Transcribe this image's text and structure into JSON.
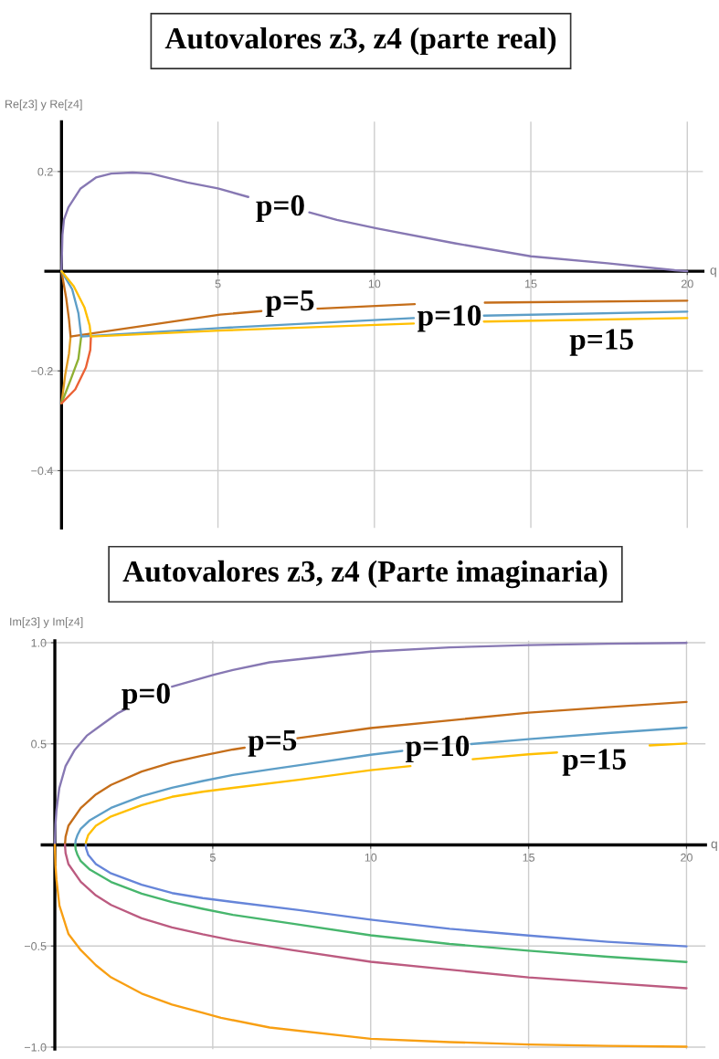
{
  "chart_data": [
    {
      "type": "line",
      "title": "Autovalores z3, z4 (parte real)",
      "xlabel": "q",
      "ylabel": "Re[z3] y Re[z4]",
      "xlim": [
        -0.5,
        20.5
      ],
      "ylim": [
        -0.515,
        0.3
      ],
      "xticks": [
        5,
        10,
        15,
        20
      ],
      "yticks": [
        {
          "value": -0.4,
          "label": "−0.4"
        },
        {
          "value": -0.2,
          "label": "−0.2"
        },
        0.2
      ],
      "grid": true,
      "series": [
        {
          "color": "#e19c24",
          "x": [
            0,
            0.12,
            0.24,
            0.29
          ],
          "values": [
            -0.265,
            -0.207,
            -0.165,
            -0.131
          ]
        },
        {
          "color": "#8fb032",
          "x": [
            0,
            0.29,
            0.54,
            0.63
          ],
          "values": [
            -0.265,
            -0.218,
            -0.176,
            -0.131
          ]
        },
        {
          "color": "#eb6235",
          "x": [
            0,
            0.44,
            0.78,
            0.92,
            0.94
          ],
          "values": [
            -0.265,
            -0.237,
            -0.193,
            -0.158,
            -0.131
          ]
        },
        {
          "color": "#8778b3",
          "x": [
            0,
            0.03,
            0.08,
            0.22,
            0.61,
            1.1,
            1.59,
            2.27,
            2.85,
            4.02,
            5.0,
            5.97,
            6.95,
            7.92,
            8.8,
            10.07,
            12.57,
            15,
            17.45,
            19.6,
            20
          ],
          "values": [
            0,
            0.073,
            0.104,
            0.128,
            0.166,
            0.188,
            0.196,
            0.198,
            0.196,
            0.178,
            0.166,
            0.149,
            null,
            0.118,
            0.103,
            0.086,
            0.056,
            0.03,
            0.016,
            0.002,
            0
          ]
        },
        {
          "color": "#c56e1a",
          "x": [
            0,
            0.05,
            0.15,
            0.24,
            0.29,
            5.07,
            6.39,
            7.3,
            8.18,
            11.29,
            12.4,
            13.53,
            20
          ],
          "values": [
            0,
            -0.018,
            -0.054,
            -0.097,
            -0.131,
            -0.087,
            -0.08,
            null,
            -0.075,
            -0.066,
            null,
            -0.063,
            -0.059
          ]
        },
        {
          "color": "#5d9ec7",
          "x": [
            0,
            0.34,
            0.54,
            0.61,
            0.63,
            5.04,
            11.26,
            12.4,
            13.5,
            20
          ],
          "values": [
            0,
            -0.036,
            -0.084,
            -0.12,
            -0.131,
            -0.114,
            -0.094,
            null,
            -0.089,
            -0.081
          ]
        },
        {
          "color": "#ffbf00",
          "x": [
            0,
            0.39,
            0.73,
            0.9,
            0.94,
            5.04,
            11.26,
            12.4,
            13.5,
            20
          ],
          "values": [
            0,
            -0.03,
            -0.072,
            -0.109,
            -0.131,
            -0.119,
            -0.105,
            null,
            -0.101,
            -0.094
          ]
        }
      ],
      "annotations": [
        "p=0",
        "p=5",
        "p=10",
        "p=15"
      ]
    },
    {
      "type": "line",
      "title": "Autovalores z3, z4 (Parte imaginaria)",
      "xlabel": "q",
      "ylabel": "Im[z3] y Im[z4]",
      "xlim": [
        -0.4,
        20.6
      ],
      "ylim": [
        -1.01,
        1.01
      ],
      "xticks": [
        5,
        10,
        15,
        20
      ],
      "yticks": [
        {
          "value": -1,
          "label": "−1.0"
        },
        {
          "value": -0.5,
          "label": "−0.5"
        },
        0.5,
        {
          "value": 1,
          "label": "1.0"
        }
      ],
      "grid": true,
      "series": [
        {
          "color": "#8778b3",
          "x": [
            0,
            0.02,
            0.05,
            0.14,
            0.34,
            0.63,
            1.01,
            1.4,
            1.98,
            2.22,
            2.95,
            3.71,
            5.06,
            5.64,
            6.8,
            10,
            12.5,
            15,
            17.5,
            20
          ],
          "values": [
            0,
            0.1,
            0.17,
            0.28,
            0.39,
            0.47,
            0.54,
            0.585,
            0.65,
            0.67,
            null,
            0.783,
            0.843,
            0.865,
            0.903,
            0.956,
            0.977,
            0.988,
            0.995,
            0.999
          ]
        },
        {
          "color": "#c56e1a",
          "x": [
            0.32,
            0.34,
            0.43,
            0.82,
            1.3,
            1.78,
            2.75,
            3.71,
            4.68,
            5.64,
            6.01,
            6.85,
            7.68,
            10,
            12.5,
            15,
            17.5,
            20
          ],
          "values": [
            0,
            0.04,
            0.095,
            0.182,
            0.25,
            0.297,
            0.363,
            0.408,
            0.442,
            0.472,
            0.481,
            null,
            0.528,
            0.578,
            0.616,
            0.654,
            0.681,
            0.707
          ]
        },
        {
          "color": "#5d9ec7",
          "x": [
            0.645,
            0.66,
            0.72,
            0.82,
            1.11,
            1.78,
            2.75,
            3.71,
            4.68,
            5.64,
            6.8,
            8,
            10,
            11,
            12.1,
            13.18,
            15,
            17.5,
            20
          ],
          "values": [
            0,
            0.023,
            0.05,
            0.08,
            0.122,
            0.183,
            0.241,
            0.283,
            0.316,
            0.346,
            0.373,
            0.4,
            0.446,
            0.465,
            null,
            0.499,
            0.523,
            0.553,
            0.58
          ]
        },
        {
          "color": "#ffbf00",
          "x": [
            0.98,
            0.99,
            1.06,
            1.3,
            1.78,
            2.75,
            3.71,
            4.68,
            5.64,
            7.73,
            10,
            11.26,
            12.2,
            13.23,
            15,
            15.9,
            17.4,
            18.83,
            20
          ],
          "values": [
            0,
            0.018,
            0.05,
            0.095,
            0.141,
            0.197,
            0.238,
            0.263,
            0.282,
            0.322,
            0.37,
            0.39,
            null,
            0.424,
            0.448,
            0.457,
            null,
            0.492,
            0.502
          ]
        },
        {
          "color": "#6685d9",
          "x": [
            0.98,
            0.99,
            1.06,
            1.3,
            1.78,
            2.75,
            3.71,
            4.68,
            5.64,
            7.73,
            10,
            12.5,
            15,
            17.5,
            20
          ],
          "values": [
            0,
            -0.018,
            -0.05,
            -0.095,
            -0.141,
            -0.197,
            -0.238,
            -0.263,
            -0.282,
            -0.322,
            -0.37,
            -0.415,
            -0.448,
            -0.479,
            -0.502
          ]
        },
        {
          "color": "#f89f13",
          "x": [
            0,
            0.02,
            0.05,
            0.145,
            0.43,
            0.82,
            1.3,
            1.78,
            2.75,
            3.71,
            4.68,
            5.26,
            6.8,
            10,
            12.5,
            15,
            17.5,
            20
          ],
          "values": [
            0,
            -0.1,
            -0.17,
            -0.3,
            -0.44,
            -0.52,
            -0.595,
            -0.655,
            -0.735,
            -0.79,
            -0.83,
            -0.855,
            -0.903,
            -0.959,
            -0.975,
            -0.987,
            -0.994,
            -0.998
          ]
        },
        {
          "color": "#bc5b80",
          "x": [
            0.32,
            0.34,
            0.43,
            0.82,
            1.3,
            1.78,
            2.75,
            3.71,
            4.68,
            5.64,
            7.5,
            10,
            12.5,
            15,
            17.5,
            20
          ],
          "values": [
            0,
            -0.04,
            -0.095,
            -0.182,
            -0.25,
            -0.297,
            -0.363,
            -0.408,
            -0.442,
            -0.472,
            -0.52,
            -0.578,
            -0.617,
            -0.655,
            -0.682,
            -0.709
          ]
        },
        {
          "color": "#47b66d",
          "x": [
            0.645,
            0.66,
            0.72,
            0.82,
            1.11,
            1.78,
            2.75,
            3.71,
            4.68,
            5.64,
            7.5,
            10,
            12.5,
            15,
            17.5,
            20
          ],
          "values": [
            0,
            -0.023,
            -0.05,
            -0.08,
            -0.122,
            -0.183,
            -0.241,
            -0.283,
            -0.316,
            -0.346,
            -0.389,
            -0.447,
            -0.49,
            -0.523,
            -0.553,
            -0.579
          ]
        }
      ],
      "annotations": [
        "p=0",
        "p=5",
        "p=10",
        "p=15"
      ]
    }
  ]
}
